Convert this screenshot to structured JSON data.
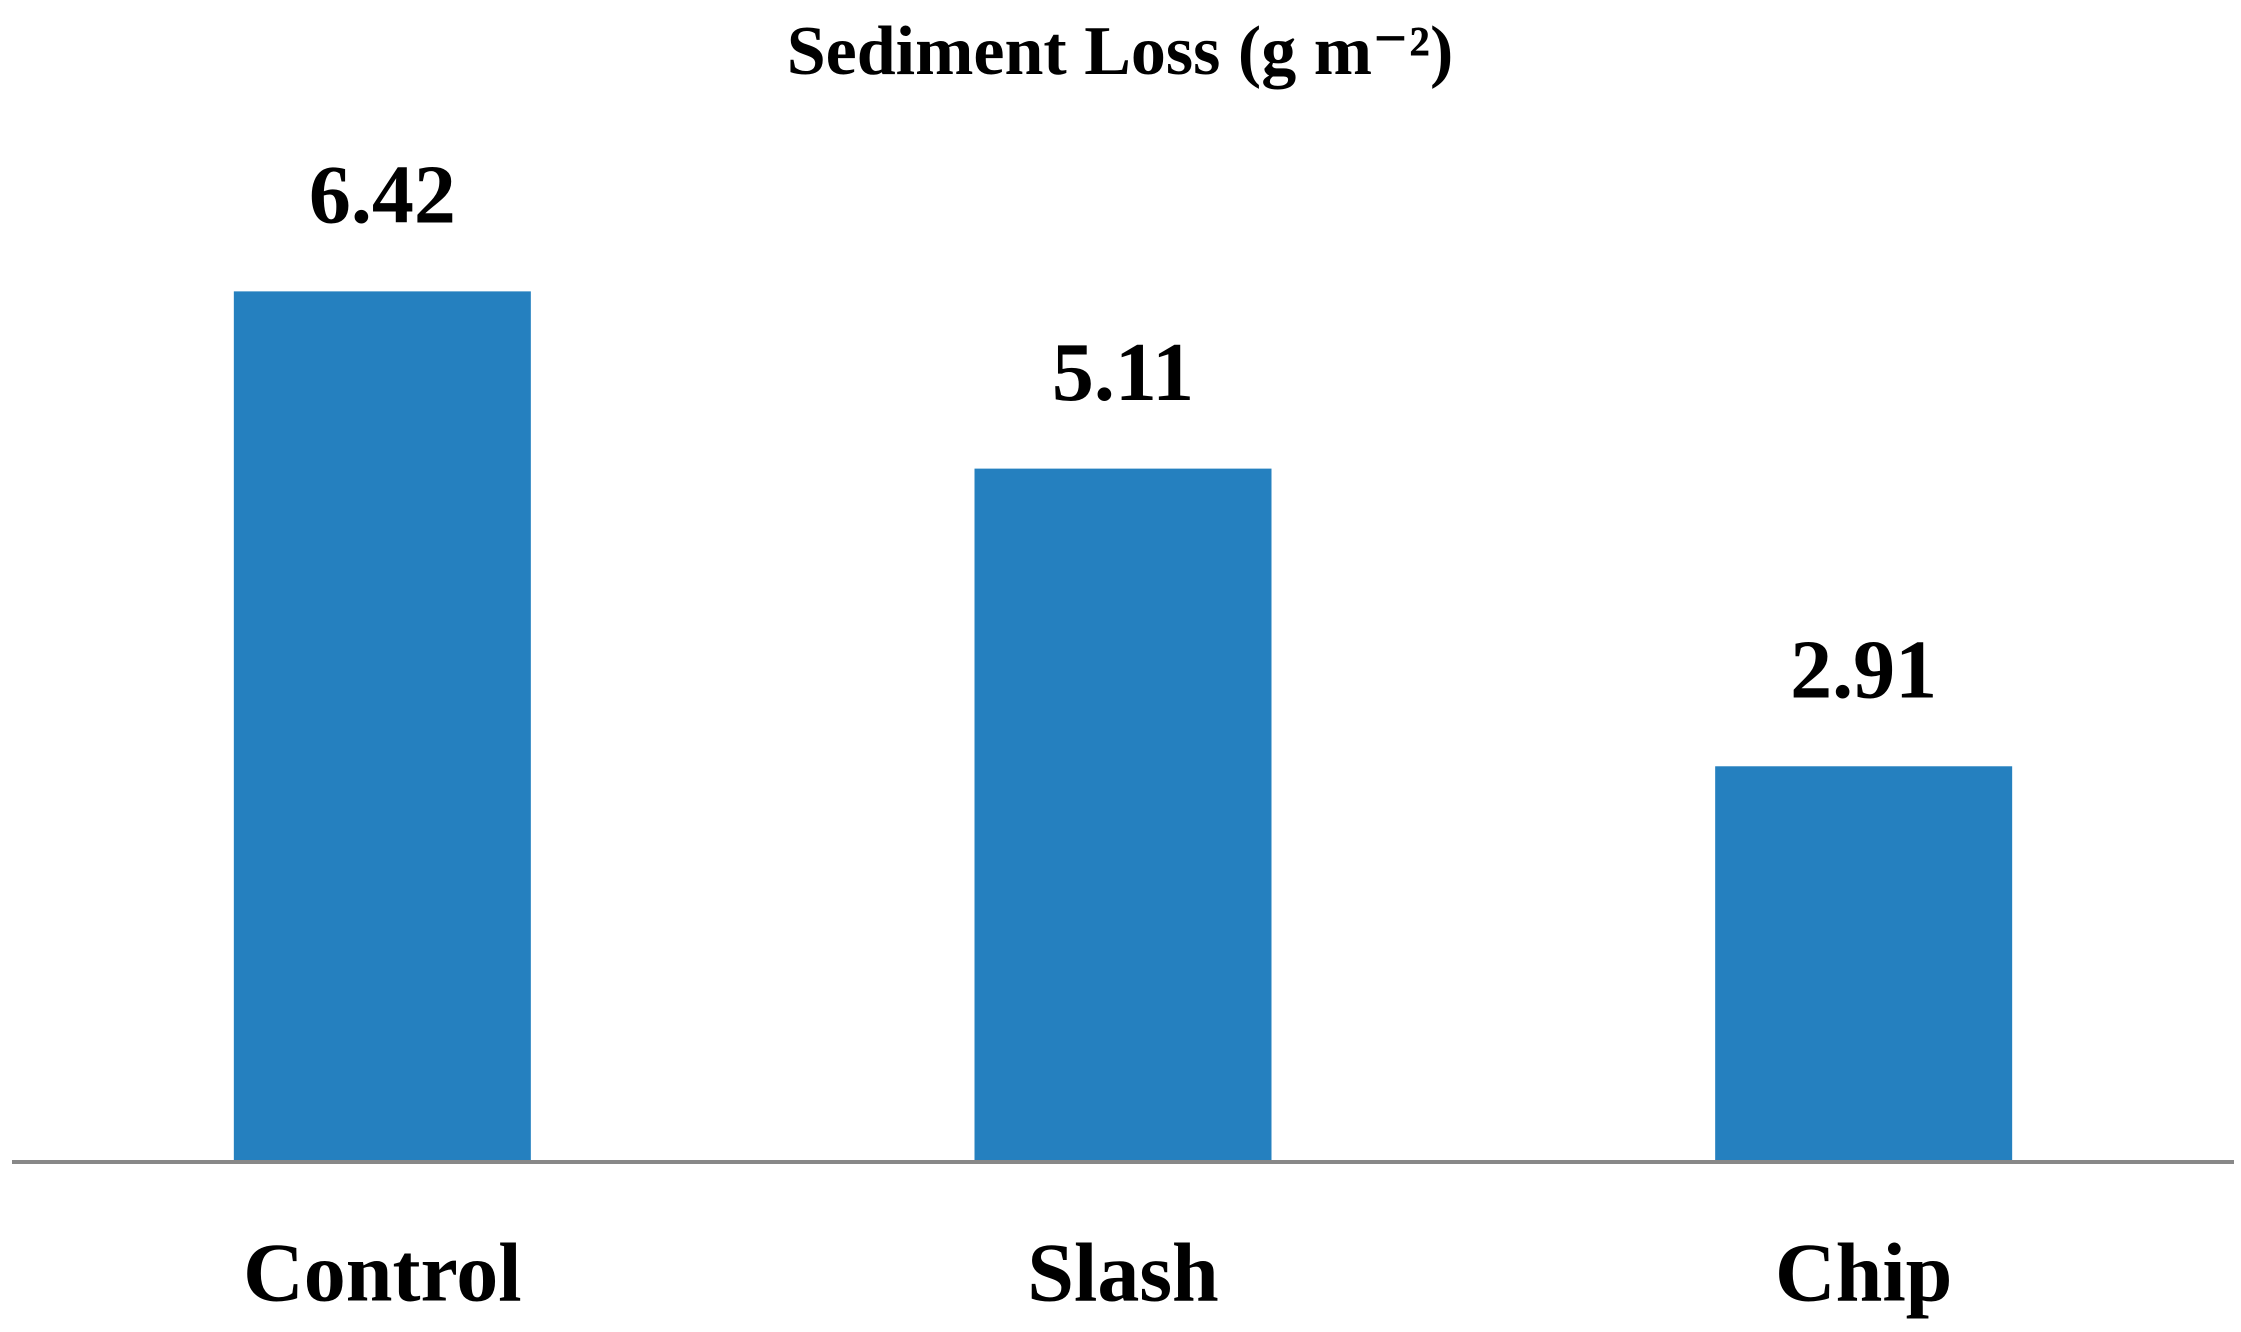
{
  "chart_data": {
    "type": "bar",
    "title": "Sediment Loss (g m⁻²)",
    "categories": [
      "Control",
      "Slash",
      "Chip"
    ],
    "values": [
      6.42,
      5.11,
      2.91
    ],
    "color": "#2580bf"
  }
}
